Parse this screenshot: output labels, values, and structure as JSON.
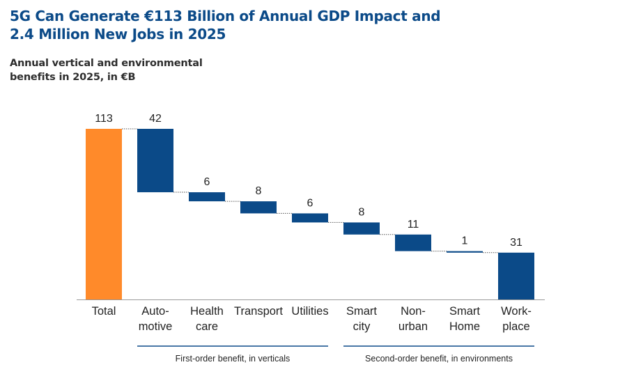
{
  "title": "5G Can Generate €113 Billion of Annual GDP Impact and 2.4 Million New Jobs in 2025",
  "subtitle": "Annual vertical and environmental benefits in 2025, in €B",
  "colors": {
    "total": "#ff8a2a",
    "component": "#0b4a88",
    "title": "#0b4a88",
    "connector": "#555555",
    "group_line": "#0b4a88"
  },
  "chart_data": {
    "type": "bar",
    "subtype": "waterfall",
    "title": "Annual vertical and environmental benefits in 2025, in €B",
    "categories": [
      [
        "Total"
      ],
      [
        "Auto-",
        "motive"
      ],
      [
        "Health",
        "care"
      ],
      [
        "Transport"
      ],
      [
        "Utilities"
      ],
      [
        "Smart",
        "city"
      ],
      [
        "Non-",
        "urban"
      ],
      [
        "Smart",
        "Home"
      ],
      [
        "Work-",
        "place"
      ]
    ],
    "values": [
      113,
      42,
      6,
      8,
      6,
      8,
      11,
      1,
      31
    ],
    "value_labels": [
      "113",
      "42",
      "6",
      "8",
      "6",
      "8",
      "11",
      "1",
      "31"
    ],
    "bar_kind": [
      "total",
      "component",
      "component",
      "component",
      "component",
      "component",
      "component",
      "component",
      "component"
    ],
    "ylim": [
      0,
      113
    ],
    "groups": [
      {
        "label": "First-order benefit, in verticals",
        "start_index": 1,
        "end_index": 4
      },
      {
        "label": "Second-order benefit, in environments",
        "start_index": 5,
        "end_index": 8
      }
    ],
    "xlabel": "",
    "ylabel": "",
    "grid": false,
    "legend": "none"
  }
}
